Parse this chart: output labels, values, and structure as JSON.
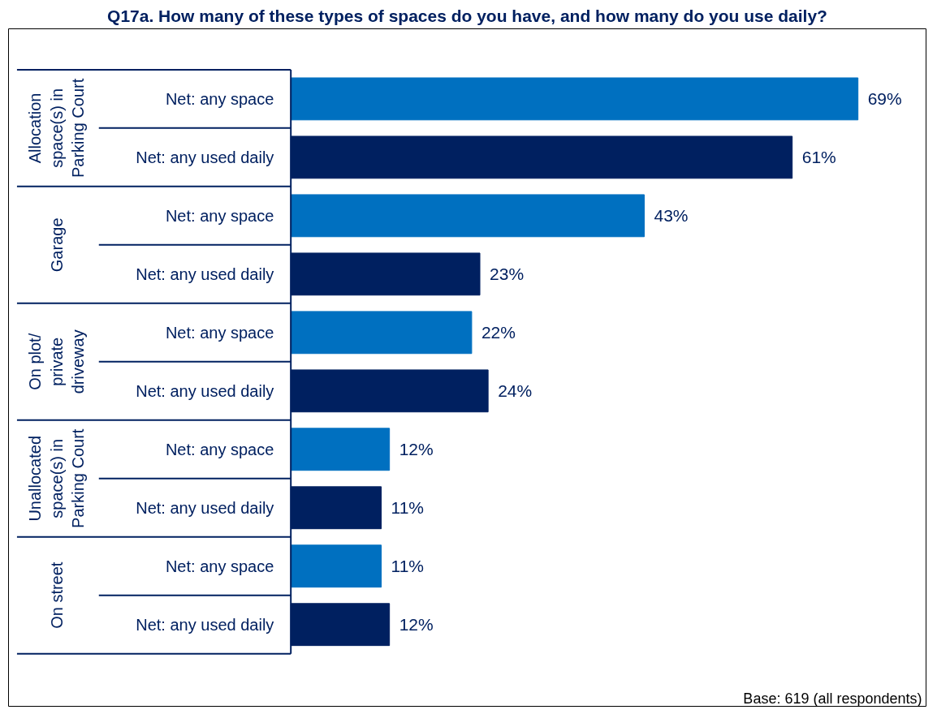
{
  "chart_data": {
    "type": "bar",
    "orientation": "horizontal",
    "title": "Q17a. How many of these types of spaces do you have, and how many do you use daily?",
    "categories": [
      "Net: any space",
      "Net: any used daily",
      "Net: any space",
      "Net: any used daily",
      "Net: any space",
      "Net: any used daily",
      "Net: any space",
      "Net: any used daily",
      "Net: any space",
      "Net: any used daily"
    ],
    "values": [
      69,
      61,
      43,
      23,
      22,
      24,
      12,
      11,
      11,
      12
    ],
    "colors": [
      "#0070c0",
      "#002060",
      "#0070c0",
      "#002060",
      "#0070c0",
      "#002060",
      "#0070c0",
      "#002060",
      "#0070c0",
      "#002060"
    ],
    "value_labels": [
      "69%",
      "61%",
      "43%",
      "23%",
      "22%",
      "24%",
      "12%",
      "11%",
      "11%",
      "12%"
    ],
    "annotations": [
      "Allocation\nspace(s) in\nParking Court",
      "Garage",
      "On plot/\nprivate\ndriveway",
      "Unallocated\nspace(s) in\nParking Court",
      "On street",
      "Base: 619 (all respondents)"
    ],
    "grid": false
  }
}
